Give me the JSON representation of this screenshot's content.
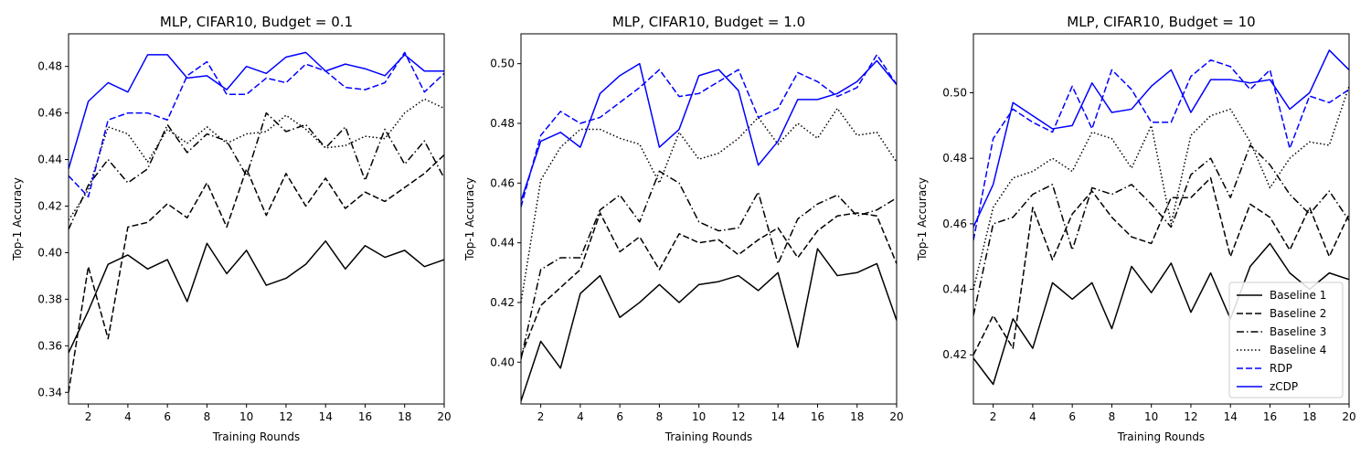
{
  "chart_data": [
    {
      "type": "line",
      "title": "MLP, CIFAR10, Budget = 0.1",
      "xlabel": "Training Rounds",
      "ylabel": "Top-1 Accuracy",
      "xlim": [
        1,
        20
      ],
      "ylim": [
        0.335,
        0.494
      ],
      "xticks": [
        2,
        4,
        6,
        8,
        10,
        12,
        14,
        16,
        18,
        20
      ],
      "yticks": [
        0.34,
        0.36,
        0.38,
        0.4,
        0.42,
        0.44,
        0.46,
        0.48
      ],
      "ytick_labels": [
        "0.34",
        "0.36",
        "0.38",
        "0.40",
        "0.42",
        "0.44",
        "0.46",
        "0.48"
      ],
      "legend": false,
      "x": [
        1,
        2,
        3,
        4,
        5,
        6,
        7,
        8,
        9,
        10,
        11,
        12,
        13,
        14,
        15,
        16,
        17,
        18,
        19,
        20
      ],
      "series": [
        {
          "name": "Baseline 1",
          "color": "#000000",
          "dash": "solid",
          "values": [
            0.357,
            0.375,
            0.395,
            0.399,
            0.393,
            0.397,
            0.379,
            0.404,
            0.391,
            0.401,
            0.386,
            0.389,
            0.395,
            0.405,
            0.393,
            0.403,
            0.398,
            0.401,
            0.394,
            0.397
          ]
        },
        {
          "name": "Baseline 2",
          "color": "#000000",
          "dash": "dashed",
          "values": [
            0.34,
            0.394,
            0.363,
            0.411,
            0.413,
            0.421,
            0.415,
            0.43,
            0.411,
            0.436,
            0.416,
            0.434,
            0.42,
            0.432,
            0.419,
            0.426,
            0.422,
            0.428,
            0.434,
            0.442
          ]
        },
        {
          "name": "Baseline 3",
          "color": "#000000",
          "dash": "dashdot",
          "values": [
            0.41,
            0.429,
            0.44,
            0.43,
            0.436,
            0.455,
            0.443,
            0.451,
            0.448,
            0.433,
            0.46,
            0.452,
            0.455,
            0.445,
            0.454,
            0.431,
            0.453,
            0.438,
            0.448,
            0.432
          ]
        },
        {
          "name": "Baseline 4",
          "color": "#000000",
          "dash": "dotted",
          "values": [
            0.414,
            0.427,
            0.454,
            0.451,
            0.439,
            0.453,
            0.447,
            0.454,
            0.447,
            0.451,
            0.452,
            0.459,
            0.453,
            0.445,
            0.446,
            0.45,
            0.449,
            0.46,
            0.466,
            0.462
          ]
        },
        {
          "name": "RDP",
          "color": "#0000ff",
          "dash": "dashed",
          "values": [
            0.433,
            0.424,
            0.457,
            0.46,
            0.46,
            0.457,
            0.476,
            0.482,
            0.468,
            0.468,
            0.475,
            0.473,
            0.481,
            0.478,
            0.471,
            0.47,
            0.473,
            0.486,
            0.469,
            0.477
          ]
        },
        {
          "name": "zCDP",
          "color": "#0000ff",
          "dash": "solid",
          "values": [
            0.436,
            0.465,
            0.473,
            0.469,
            0.485,
            0.485,
            0.475,
            0.476,
            0.47,
            0.48,
            0.477,
            0.484,
            0.486,
            0.478,
            0.481,
            0.479,
            0.476,
            0.485,
            0.478,
            0.478
          ]
        }
      ]
    },
    {
      "type": "line",
      "title": "MLP, CIFAR10, Budget = 1.0",
      "xlabel": "Training Rounds",
      "ylabel": "Top-1 Accuracy",
      "xlim": [
        1,
        20
      ],
      "ylim": [
        0.386,
        0.51
      ],
      "xticks": [
        2,
        4,
        6,
        8,
        10,
        12,
        14,
        16,
        18,
        20
      ],
      "yticks": [
        0.4,
        0.42,
        0.44,
        0.46,
        0.48,
        0.5
      ],
      "ytick_labels": [
        "0.40",
        "0.42",
        "0.44",
        "0.46",
        "0.48",
        "0.50"
      ],
      "legend": false,
      "x": [
        1,
        2,
        3,
        4,
        5,
        6,
        7,
        8,
        9,
        10,
        11,
        12,
        13,
        14,
        15,
        16,
        17,
        18,
        19,
        20
      ],
      "series": [
        {
          "name": "Baseline 1",
          "color": "#000000",
          "dash": "solid",
          "values": [
            0.387,
            0.407,
            0.398,
            0.423,
            0.429,
            0.415,
            0.42,
            0.426,
            0.42,
            0.426,
            0.427,
            0.429,
            0.424,
            0.43,
            0.405,
            0.438,
            0.429,
            0.43,
            0.433,
            0.414
          ]
        },
        {
          "name": "Baseline 2",
          "color": "#000000",
          "dash": "dashed",
          "values": [
            0.402,
            0.419,
            0.425,
            0.431,
            0.45,
            0.437,
            0.442,
            0.431,
            0.443,
            0.44,
            0.441,
            0.436,
            0.441,
            0.445,
            0.435,
            0.444,
            0.449,
            0.45,
            0.449,
            0.433
          ]
        },
        {
          "name": "Baseline 3",
          "color": "#000000",
          "dash": "dashdot",
          "values": [
            0.401,
            0.431,
            0.435,
            0.435,
            0.451,
            0.456,
            0.447,
            0.464,
            0.46,
            0.447,
            0.444,
            0.445,
            0.457,
            0.433,
            0.448,
            0.453,
            0.456,
            0.449,
            0.451,
            0.455
          ]
        },
        {
          "name": "Baseline 4",
          "color": "#000000",
          "dash": "dotted",
          "values": [
            0.42,
            0.461,
            0.472,
            0.478,
            0.478,
            0.475,
            0.473,
            0.46,
            0.477,
            0.468,
            0.47,
            0.475,
            0.482,
            0.473,
            0.48,
            0.475,
            0.485,
            0.476,
            0.477,
            0.467
          ]
        },
        {
          "name": "RDP",
          "color": "#0000ff",
          "dash": "dashed",
          "values": [
            0.452,
            0.476,
            0.484,
            0.48,
            0.482,
            0.487,
            0.492,
            0.498,
            0.489,
            0.49,
            0.494,
            0.498,
            0.482,
            0.485,
            0.497,
            0.494,
            0.489,
            0.492,
            0.503,
            0.493
          ]
        },
        {
          "name": "zCDP",
          "color": "#0000ff",
          "dash": "solid",
          "values": [
            0.454,
            0.474,
            0.477,
            0.472,
            0.49,
            0.496,
            0.5,
            0.472,
            0.478,
            0.496,
            0.498,
            0.491,
            0.466,
            0.474,
            0.488,
            0.488,
            0.49,
            0.494,
            0.501,
            0.493
          ]
        }
      ]
    },
    {
      "type": "line",
      "title": "MLP, CIFAR10, Budget = 10",
      "xlabel": "Training Rounds",
      "ylabel": "Top-1 Accuracy",
      "xlim": [
        1,
        20
      ],
      "ylim": [
        0.405,
        0.518
      ],
      "xticks": [
        2,
        4,
        6,
        8,
        10,
        12,
        14,
        16,
        18,
        20
      ],
      "yticks": [
        0.42,
        0.44,
        0.46,
        0.48,
        0.5
      ],
      "ytick_labels": [
        "0.42",
        "0.44",
        "0.46",
        "0.48",
        "0.50"
      ],
      "legend": true,
      "legend_position": "bottom-right",
      "x": [
        1,
        2,
        3,
        4,
        5,
        6,
        7,
        8,
        9,
        10,
        11,
        12,
        13,
        14,
        15,
        16,
        17,
        18,
        19,
        20
      ],
      "series": [
        {
          "name": "Baseline 1",
          "color": "#000000",
          "dash": "solid",
          "values": [
            0.419,
            0.411,
            0.431,
            0.422,
            0.442,
            0.437,
            0.442,
            0.428,
            0.447,
            0.439,
            0.448,
            0.433,
            0.445,
            0.431,
            0.447,
            0.454,
            0.445,
            0.44,
            0.445,
            0.443
          ]
        },
        {
          "name": "Baseline 2",
          "color": "#000000",
          "dash": "dashed",
          "values": [
            0.42,
            0.432,
            0.422,
            0.465,
            0.449,
            0.463,
            0.47,
            0.462,
            0.456,
            0.454,
            0.468,
            0.468,
            0.474,
            0.45,
            0.466,
            0.462,
            0.452,
            0.465,
            0.45,
            0.463
          ]
        },
        {
          "name": "Baseline 3",
          "color": "#000000",
          "dash": "dashdot",
          "values": [
            0.432,
            0.46,
            0.462,
            0.469,
            0.472,
            0.452,
            0.471,
            0.469,
            0.472,
            0.466,
            0.459,
            0.475,
            0.48,
            0.468,
            0.484,
            0.478,
            0.469,
            0.463,
            0.47,
            0.461
          ]
        },
        {
          "name": "Baseline 4",
          "color": "#000000",
          "dash": "dotted",
          "values": [
            0.44,
            0.465,
            0.474,
            0.476,
            0.48,
            0.476,
            0.488,
            0.486,
            0.477,
            0.49,
            0.46,
            0.487,
            0.493,
            0.495,
            0.485,
            0.471,
            0.48,
            0.485,
            0.484,
            0.502
          ]
        },
        {
          "name": "RDP",
          "color": "#0000ff",
          "dash": "dashed",
          "values": [
            0.455,
            0.486,
            0.495,
            0.491,
            0.488,
            0.502,
            0.489,
            0.507,
            0.501,
            0.491,
            0.491,
            0.505,
            0.51,
            0.508,
            0.501,
            0.507,
            0.483,
            0.499,
            0.497,
            0.501
          ]
        },
        {
          "name": "zCDP",
          "color": "#0000ff",
          "dash": "solid",
          "values": [
            0.459,
            0.472,
            0.497,
            0.493,
            0.489,
            0.49,
            0.503,
            0.494,
            0.495,
            0.502,
            0.507,
            0.494,
            0.504,
            0.504,
            0.503,
            0.504,
            0.495,
            0.5,
            0.513,
            0.507
          ]
        }
      ]
    }
  ]
}
